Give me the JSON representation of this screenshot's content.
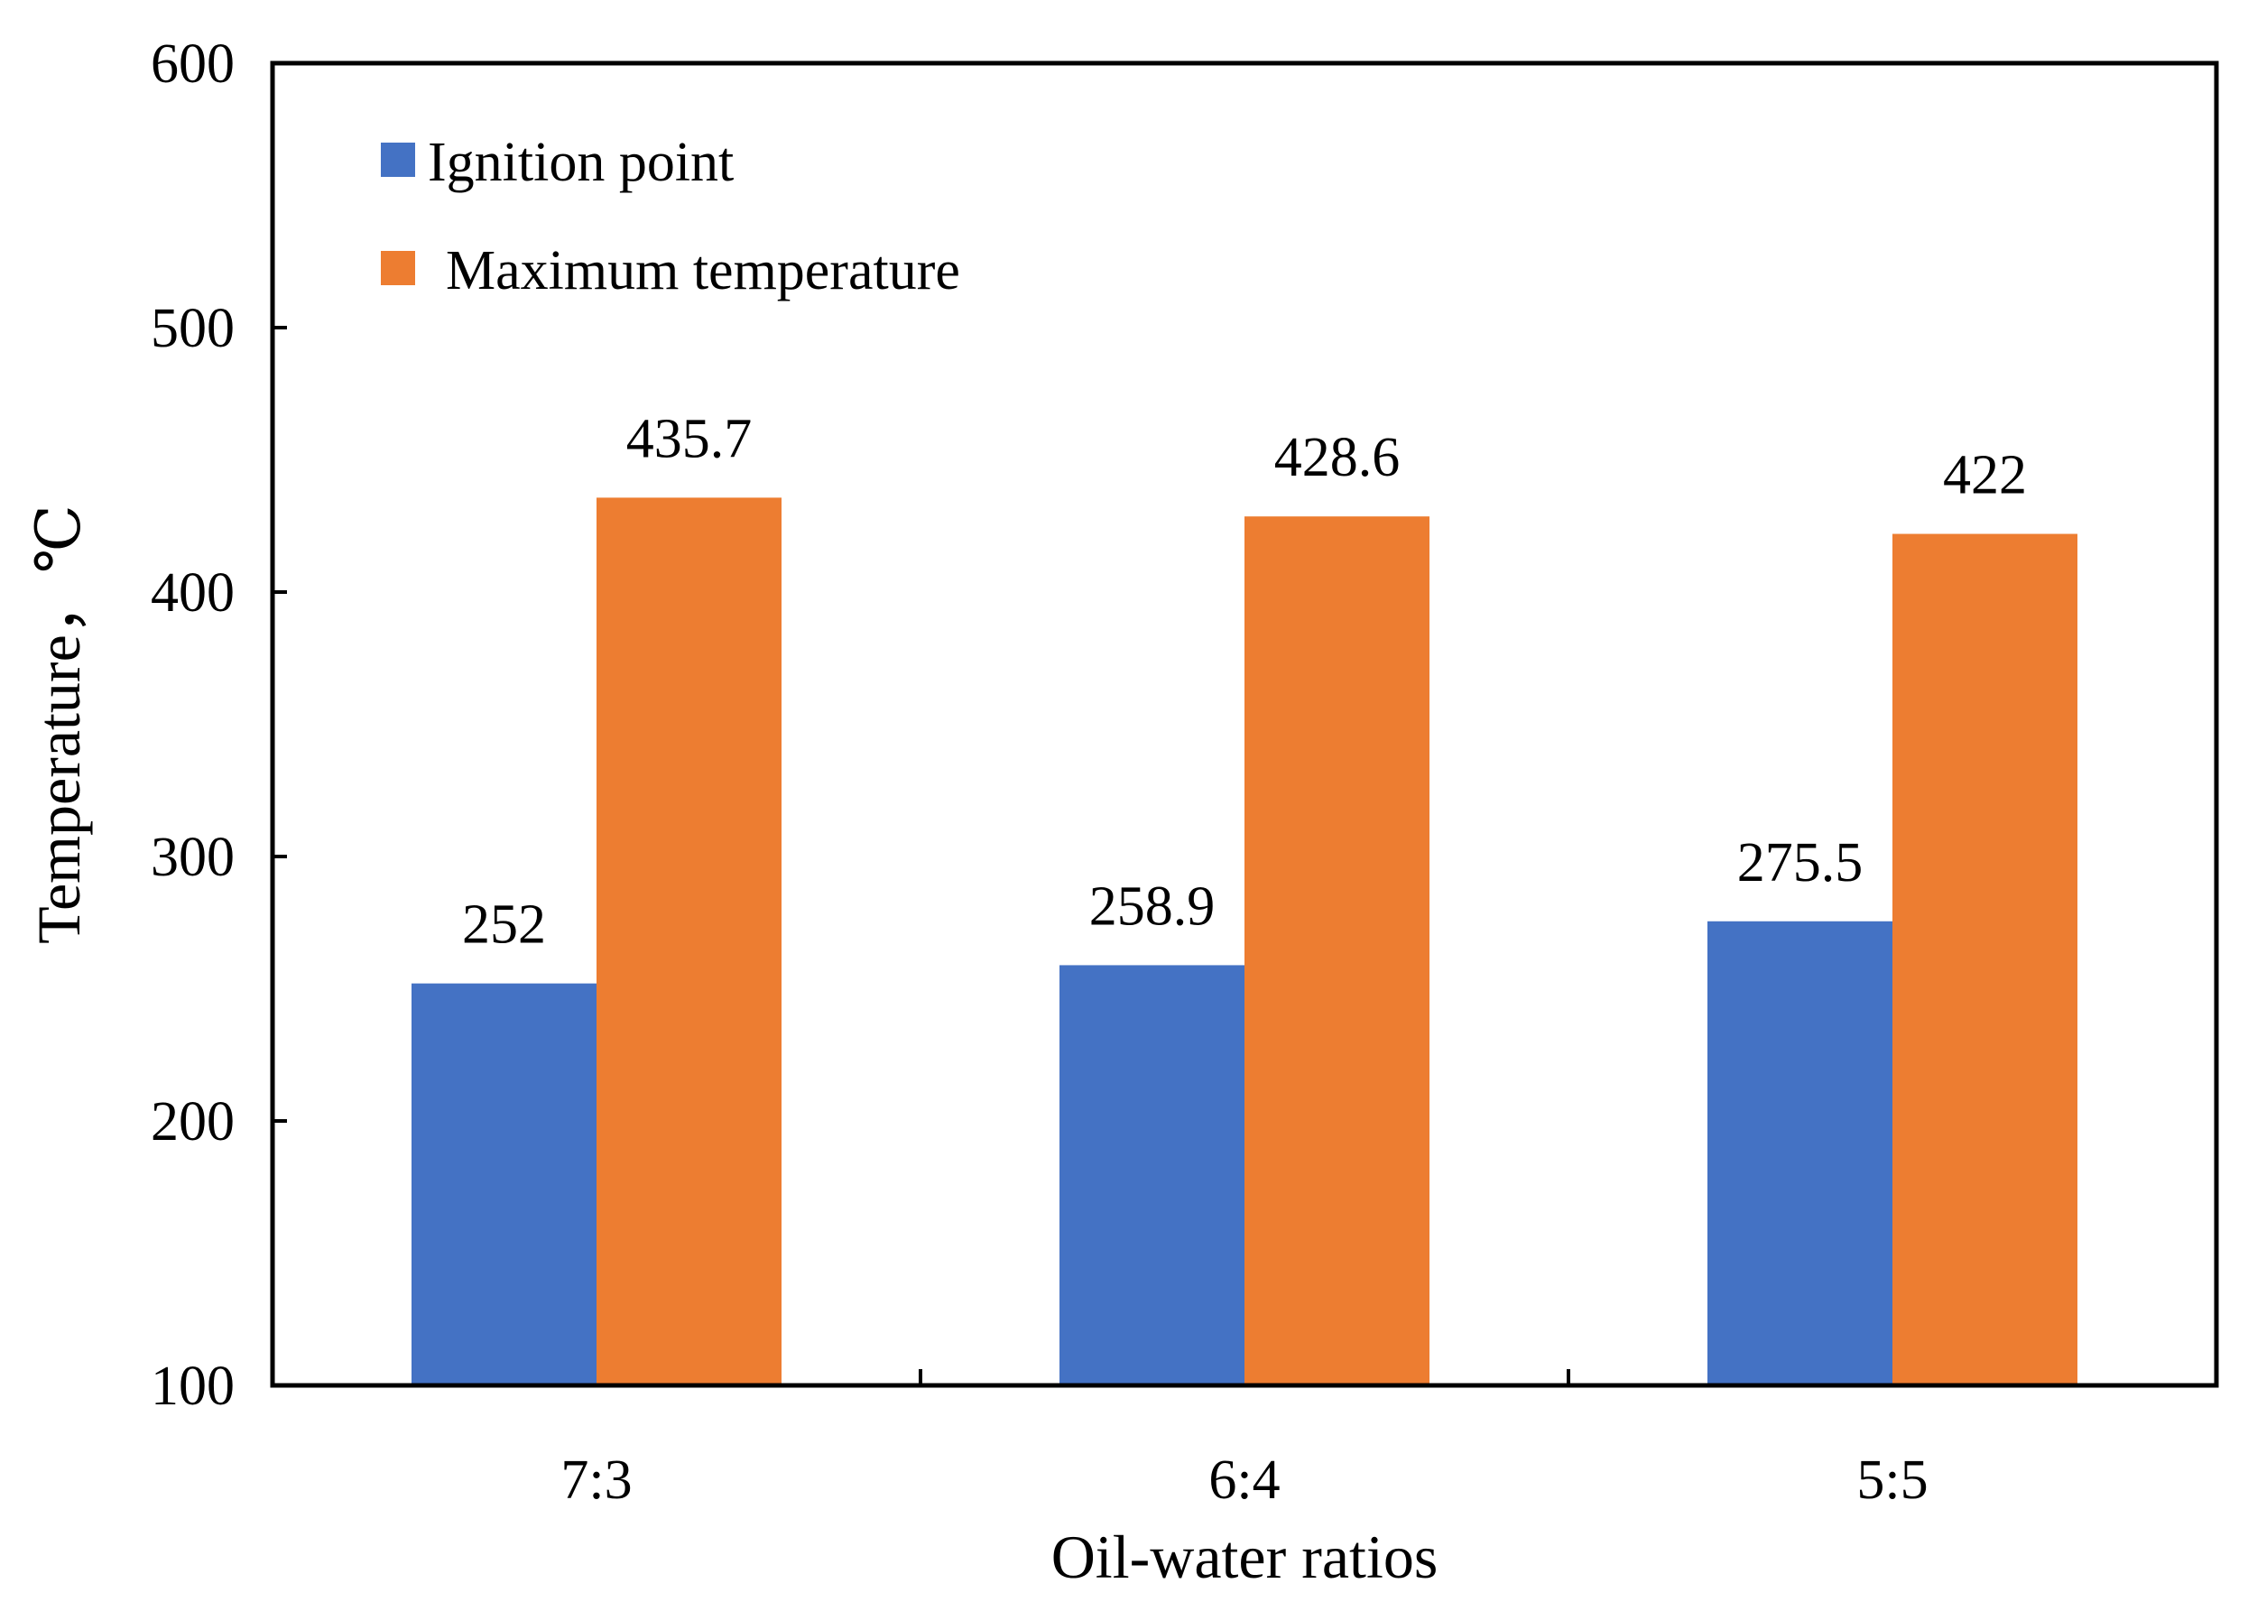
{
  "chart_data": {
    "type": "bar",
    "title": "",
    "categories": [
      "7:3",
      "6:4",
      "5:5"
    ],
    "series": [
      {
        "name": "Ignition point",
        "color": "#4472C4",
        "values": [
          252,
          258.9,
          275.5
        ],
        "labels": [
          "252",
          "258.9",
          "275.5"
        ]
      },
      {
        "name": "Maximum temperature",
        "color": "#ED7D31",
        "values": [
          435.7,
          428.6,
          422
        ],
        "labels": [
          "435.7",
          "428.6",
          "422"
        ]
      }
    ],
    "xlabel": "Oil-water ratios",
    "ylabel": "Temperature，℃",
    "ylim": [
      100,
      600
    ],
    "yticks": [
      100,
      200,
      300,
      400,
      500,
      600
    ],
    "ytick_labels": [
      "100",
      "200",
      "300",
      "400",
      "500",
      "600"
    ],
    "grid": false,
    "legend_position": "top-left"
  }
}
